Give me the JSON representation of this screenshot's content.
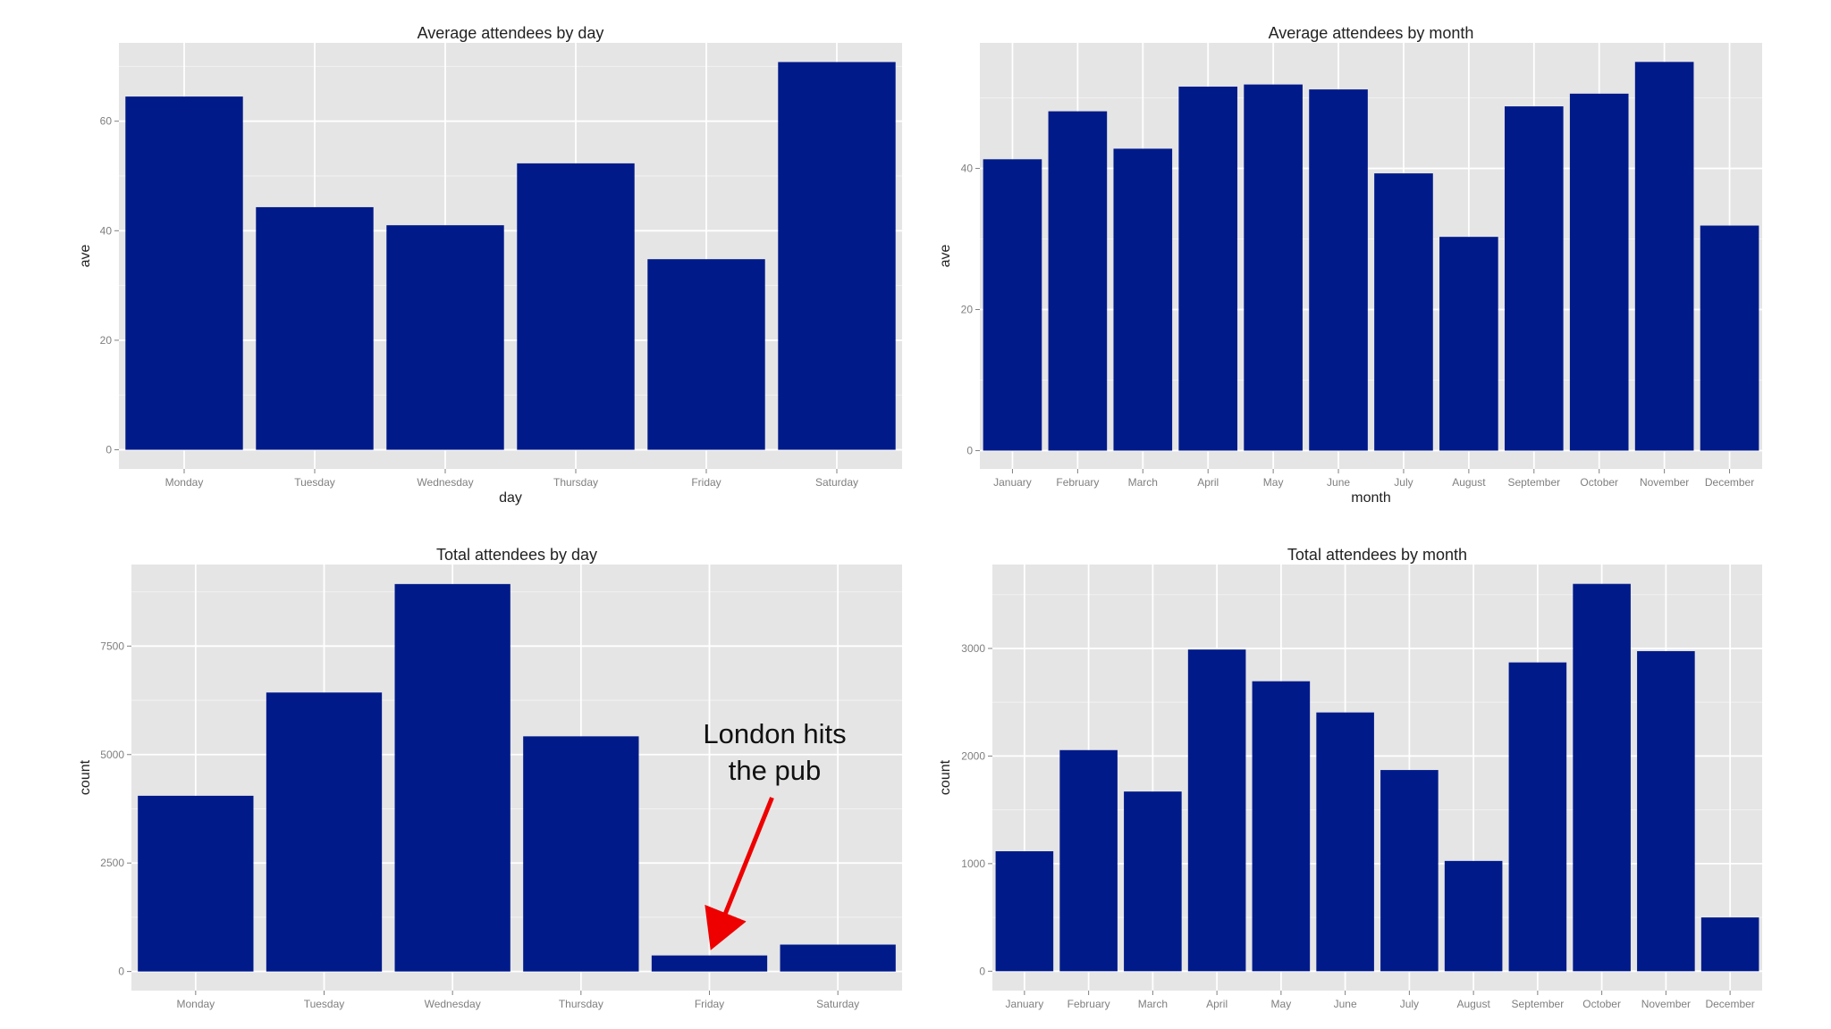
{
  "colors": {
    "panel_background": "#e5e5e5",
    "grid_major": "#ffffff",
    "bar_fill": "#001a8a",
    "annotation_arrow": "#ee0000"
  },
  "chart_data": [
    {
      "id": "avg-by-day",
      "type": "bar",
      "title": "Average attendees by day",
      "xlabel": "day",
      "ylabel": "ave",
      "categories": [
        "Monday",
        "Tuesday",
        "Wednesday",
        "Thursday",
        "Friday",
        "Saturday"
      ],
      "values": [
        64.5,
        44.3,
        41.0,
        52.3,
        34.8,
        70.8
      ],
      "ylim": [
        -3.5,
        74.3
      ],
      "yticks": [
        0,
        20,
        40,
        60
      ],
      "yticklabels": [
        "0",
        "20",
        "40",
        "60"
      ],
      "grid": true,
      "legend": "none"
    },
    {
      "id": "avg-by-month",
      "type": "bar",
      "title": "Average attendees by month",
      "xlabel": "month",
      "ylabel": "ave",
      "categories": [
        "January",
        "February",
        "March",
        "April",
        "May",
        "June",
        "July",
        "August",
        "September",
        "October",
        "November",
        "December"
      ],
      "values": [
        41.3,
        48.1,
        42.8,
        51.6,
        51.9,
        51.2,
        39.3,
        30.3,
        48.8,
        50.6,
        55.1,
        31.9
      ],
      "ylim": [
        -2.6,
        57.8
      ],
      "yticks": [
        0,
        20,
        40
      ],
      "yticklabels": [
        "0",
        "20",
        "40"
      ],
      "grid": true,
      "legend": "none"
    },
    {
      "id": "total-by-day",
      "type": "bar",
      "title": "Total attendees by day",
      "xlabel": "",
      "ylabel": "count",
      "categories": [
        "Monday",
        "Tuesday",
        "Wednesday",
        "Thursday",
        "Friday",
        "Saturday"
      ],
      "values": [
        4050,
        6430,
        8930,
        5420,
        370,
        620
      ],
      "ylim": [
        -440,
        9380
      ],
      "yticks": [
        0,
        2500,
        5000,
        7500
      ],
      "yticklabels": [
        "0",
        "2500",
        "5000",
        "7500"
      ],
      "grid": true,
      "legend": "none",
      "annotation": {
        "text_lines": [
          "London hits",
          "the pub"
        ],
        "target_category": "Friday"
      }
    },
    {
      "id": "total-by-month",
      "type": "bar",
      "title": "Total attendees by month",
      "xlabel": "",
      "ylabel": "count",
      "categories": [
        "January",
        "February",
        "March",
        "April",
        "May",
        "June",
        "July",
        "August",
        "September",
        "October",
        "November",
        "December"
      ],
      "values": [
        1115,
        2055,
        1670,
        2990,
        2695,
        2405,
        1870,
        1025,
        2870,
        3600,
        2975,
        500
      ],
      "ylim": [
        -180,
        3780
      ],
      "yticks": [
        0,
        1000,
        2000,
        3000
      ],
      "yticklabels": [
        "0",
        "1000",
        "2000",
        "3000"
      ],
      "grid": true,
      "legend": "none"
    }
  ]
}
